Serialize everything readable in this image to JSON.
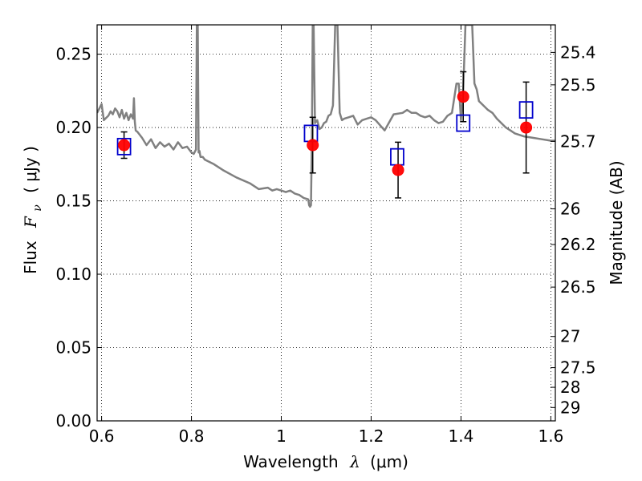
{
  "chart_data": {
    "type": "scatter",
    "xlabel_prefix": "Wavelength",
    "xlabel_symbol": "λ",
    "xlabel_suffix": "(μm)",
    "ylabel_prefix": "Flux",
    "ylabel_symbol": "F",
    "ylabel_subscript": "ν",
    "ylabel_suffix": "( μJy )",
    "y2label": "Magnitude (AB)",
    "xlim": [
      0.59,
      1.61
    ],
    "ylim": [
      0.0,
      0.27
    ],
    "grid": true,
    "x_ticks": [
      0.6,
      0.8,
      1.0,
      1.2,
      1.4,
      1.6
    ],
    "x_tick_labels": [
      "0.6",
      "0.8",
      "1",
      "1.2",
      "1.4",
      "1.6"
    ],
    "y_ticks": [
      0.0,
      0.05,
      0.1,
      0.15,
      0.2,
      0.25
    ],
    "y_tick_labels": [
      "0.00",
      "0.05",
      "0.10",
      "0.15",
      "0.20",
      "0.25"
    ],
    "mag_ticks": [
      25.4,
      25.5,
      25.7,
      26,
      26.2,
      26.5,
      27,
      27.5,
      28,
      29
    ],
    "mag_tick_labels": [
      "25.4",
      "25.5",
      "25.7",
      "26",
      "26.2",
      "26.5",
      "27",
      "27.5",
      "28",
      "29"
    ],
    "colors": {
      "model": "#808080",
      "observed": "#ff0000",
      "model_photometry": "#0000cc",
      "errorbar": "#000000",
      "grid": "#000000"
    },
    "series": [
      {
        "kind": "line",
        "x": [
          0.59,
          0.6,
          0.605,
          0.615,
          0.62,
          0.625,
          0.63,
          0.635,
          0.64,
          0.645,
          0.65,
          0.655,
          0.66,
          0.665,
          0.67,
          0.672,
          0.674,
          0.676,
          0.68,
          0.69,
          0.7,
          0.71,
          0.72,
          0.73,
          0.74,
          0.75,
          0.76,
          0.77,
          0.78,
          0.79,
          0.8,
          0.805,
          0.81,
          0.812,
          0.814,
          0.816,
          0.818,
          0.82,
          0.825,
          0.83,
          0.85,
          0.87,
          0.9,
          0.93,
          0.95,
          0.97,
          0.98,
          0.99,
          1.0,
          1.01,
          1.02,
          1.03,
          1.04,
          1.05,
          1.06,
          1.062,
          1.064,
          1.066,
          1.068,
          1.07,
          1.072,
          1.075,
          1.08,
          1.085,
          1.09,
          1.095,
          1.1,
          1.105,
          1.11,
          1.115,
          1.12,
          1.125,
          1.13,
          1.135,
          1.14,
          1.15,
          1.16,
          1.17,
          1.18,
          1.19,
          1.2,
          1.21,
          1.23,
          1.25,
          1.27,
          1.28,
          1.29,
          1.3,
          1.31,
          1.32,
          1.33,
          1.34,
          1.35,
          1.36,
          1.37,
          1.38,
          1.39,
          1.395,
          1.4,
          1.405,
          1.41,
          1.415,
          1.42,
          1.425,
          1.43,
          1.435,
          1.44,
          1.45,
          1.46,
          1.47,
          1.48,
          1.49,
          1.5,
          1.51,
          1.52,
          1.54,
          1.56,
          1.58,
          1.6,
          1.61
        ],
        "y": [
          0.21,
          0.216,
          0.205,
          0.208,
          0.211,
          0.209,
          0.213,
          0.211,
          0.207,
          0.212,
          0.206,
          0.21,
          0.205,
          0.209,
          0.206,
          0.22,
          0.204,
          0.198,
          0.197,
          0.193,
          0.188,
          0.192,
          0.186,
          0.19,
          0.187,
          0.189,
          0.185,
          0.19,
          0.186,
          0.187,
          0.183,
          0.182,
          0.185,
          0.27,
          0.27,
          0.183,
          0.184,
          0.18,
          0.18,
          0.178,
          0.175,
          0.171,
          0.166,
          0.162,
          0.158,
          0.159,
          0.157,
          0.158,
          0.157,
          0.156,
          0.157,
          0.155,
          0.154,
          0.152,
          0.151,
          0.147,
          0.146,
          0.147,
          0.19,
          0.27,
          0.27,
          0.203,
          0.205,
          0.199,
          0.2,
          0.203,
          0.204,
          0.208,
          0.209,
          0.215,
          0.27,
          0.27,
          0.21,
          0.205,
          0.206,
          0.207,
          0.208,
          0.202,
          0.205,
          0.206,
          0.207,
          0.205,
          0.198,
          0.209,
          0.21,
          0.212,
          0.21,
          0.21,
          0.208,
          0.207,
          0.208,
          0.205,
          0.203,
          0.204,
          0.208,
          0.21,
          0.23,
          0.23,
          0.205,
          0.225,
          0.27,
          0.27,
          0.27,
          0.27,
          0.23,
          0.226,
          0.218,
          0.215,
          0.212,
          0.21,
          0.206,
          0.203,
          0.2,
          0.198,
          0.196,
          0.194,
          0.193,
          0.192,
          0.191,
          0.191
        ]
      },
      {
        "kind": "points",
        "marker": "circle",
        "x": [
          0.65,
          1.07,
          1.26,
          1.405,
          1.545
        ],
        "y": [
          0.188,
          0.188,
          0.171,
          0.221,
          0.2
        ],
        "yerr": [
          0.009,
          0.019,
          0.019,
          0.017,
          0.031
        ]
      },
      {
        "kind": "points",
        "marker": "square",
        "x": [
          0.65,
          1.066,
          1.258,
          1.405,
          1.545
        ],
        "y": [
          0.187,
          0.196,
          0.18,
          0.203,
          0.212
        ]
      }
    ]
  }
}
